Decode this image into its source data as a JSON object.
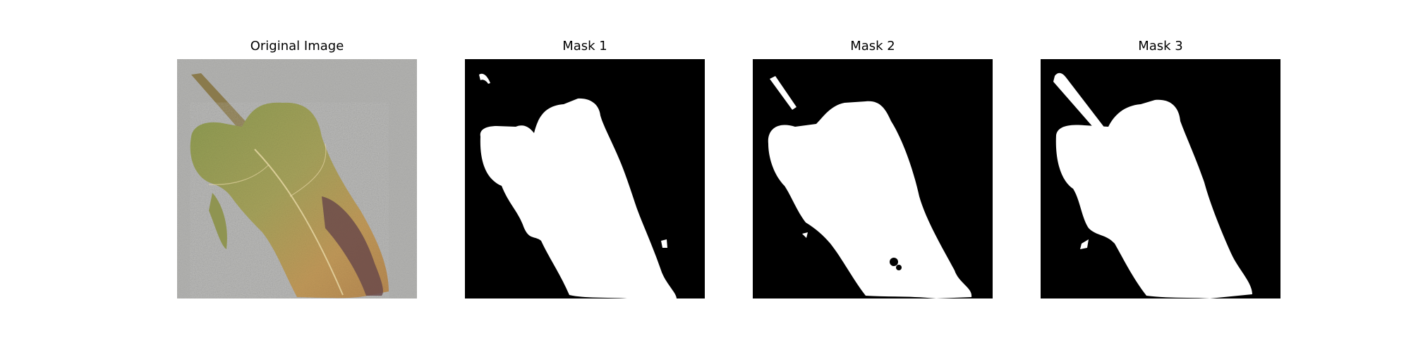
{
  "figure": {
    "panels": [
      {
        "title": "Original Image",
        "kind": "photo"
      },
      {
        "title": "Mask 1",
        "kind": "mask"
      },
      {
        "title": "Mask 2",
        "kind": "mask"
      },
      {
        "title": "Mask 3",
        "kind": "mask"
      }
    ]
  },
  "colors": {
    "mask_background": "#000000",
    "mask_foreground": "#ffffff",
    "photo_background": "#b4b4b2",
    "leaf_green": "#8e9c52",
    "leaf_orange": "#c29a5a",
    "leaf_brown": "#6b4a4a"
  }
}
